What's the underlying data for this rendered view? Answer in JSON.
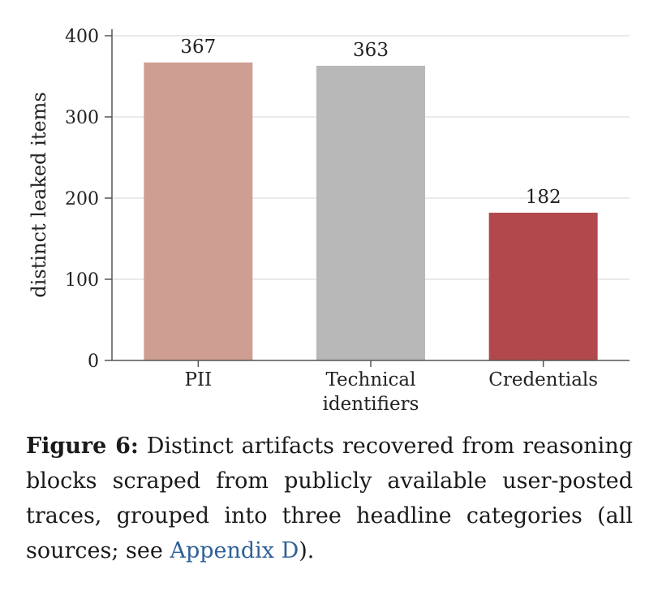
{
  "chart_data": {
    "type": "bar",
    "categories": [
      "PII",
      "Technical identifiers",
      "Credentials"
    ],
    "category_lines": [
      [
        "PII"
      ],
      [
        "Technical",
        "identifiers"
      ],
      [
        "Credentials"
      ]
    ],
    "values": [
      367,
      363,
      182
    ],
    "data_labels": [
      "367",
      "363",
      "182"
    ],
    "colors": [
      "#cf9e92",
      "#b8b8b8",
      "#b1494c"
    ],
    "ylabel": "distinct leaked items",
    "ylim": [
      0,
      410
    ],
    "yticks": [
      0,
      100,
      200,
      300,
      400
    ],
    "grid": "horizontal"
  },
  "caption": {
    "label": "Figure 6:",
    "text": " Distinct artifacts recovered from reasoning blocks scraped from publicly available user-posted traces, grouped into three headline categories (all sources; see ",
    "link": "Appendix D",
    "tail": ")."
  }
}
